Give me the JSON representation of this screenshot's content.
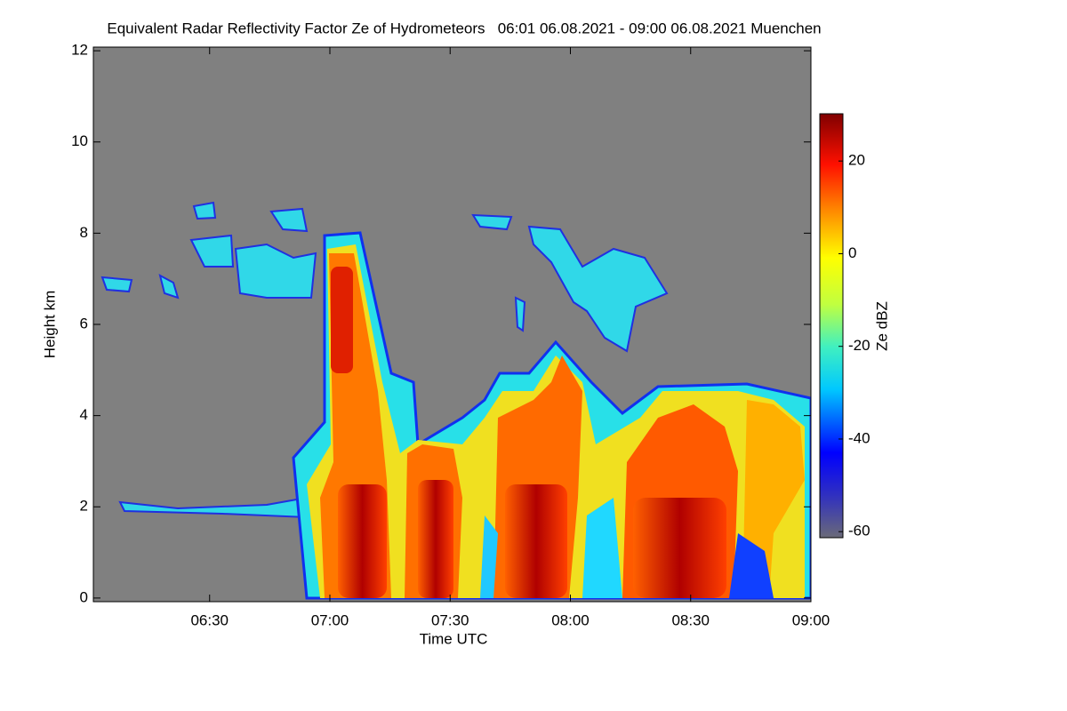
{
  "chart_data": {
    "type": "heatmap",
    "title": "Equivalent Radar Reflectivity Factor Ze of Hydrometeors   06:01 06.08.2021 - 09:00 06.08.2021 Muenchen",
    "xlabel": "Time UTC",
    "ylabel": "Height km",
    "xlim": [
      361,
      540
    ],
    "xticks": [
      {
        "value": 390,
        "label": "06:30"
      },
      {
        "value": 420,
        "label": "07:00"
      },
      {
        "value": 450,
        "label": "07:30"
      },
      {
        "value": 480,
        "label": "08:00"
      },
      {
        "value": 510,
        "label": "08:30"
      },
      {
        "value": 540,
        "label": "09:00"
      }
    ],
    "ylim": [
      -0.08,
      12.08
    ],
    "yticks": [
      0,
      2,
      4,
      6,
      8,
      10,
      12
    ],
    "colorbar": {
      "label": "Ze dBZ",
      "lim": [
        -61.3,
        30.2
      ],
      "ticks": [
        -60,
        -40,
        -20,
        0,
        20
      ]
    }
  }
}
